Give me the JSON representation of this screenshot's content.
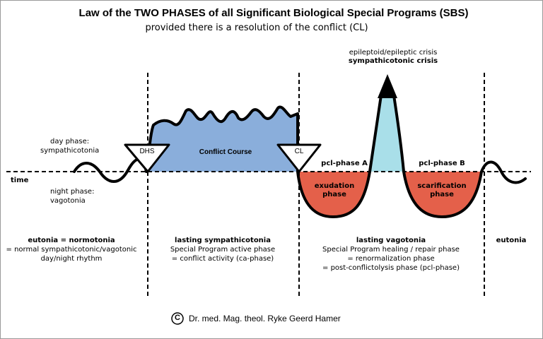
{
  "header": {
    "title": "Law of the TWO PHASES of all Significant Biological Special Programs (SBS)",
    "subtitle": "provided there is a resolution of the conflict (CL)"
  },
  "labels": {
    "day_phase": "day phase:",
    "sympathicotonia": "sympathicotonia",
    "time": "time",
    "night_phase": "night phase:",
    "vagotonia": "vagotonia",
    "dhs": "DHS",
    "cl": "CL",
    "conflict_course": "Conflict Course",
    "crisis_line1": "epileptoid/epileptic crisis",
    "crisis_line2": "sympathicotonic crisis",
    "pcl_a": "pcl-phase A",
    "pcl_b": "pcl-phase B",
    "exudation_1": "exudation",
    "exudation_2": "phase",
    "scarification_1": "scarification",
    "scarification_2": "phase"
  },
  "columns": {
    "col1": {
      "heading": "eutonia = normotonia",
      "line1": "= normal sympathicotonic/vagotonic",
      "line2": "day/night rhythm"
    },
    "col2": {
      "heading": "lasting sympathicotonia",
      "line1": "Special Program active phase",
      "line2": "= conflict activity (ca-phase)"
    },
    "col3": {
      "heading": "lasting vagotonia",
      "line1": "Special Program healing / repair phase",
      "line2": "= renormalization phase",
      "line3": "= post-conflictolysis phase (pcl-phase)"
    },
    "col4": {
      "heading": "eutonia"
    }
  },
  "footer": {
    "copyright_symbol": "C",
    "copyright": "Dr. med. Mag. theol. Ryke Geerd Hamer"
  },
  "colors": {
    "conflict": "#8aaedb",
    "healing": "#e4604a",
    "crisis": "#a9dfe9"
  }
}
